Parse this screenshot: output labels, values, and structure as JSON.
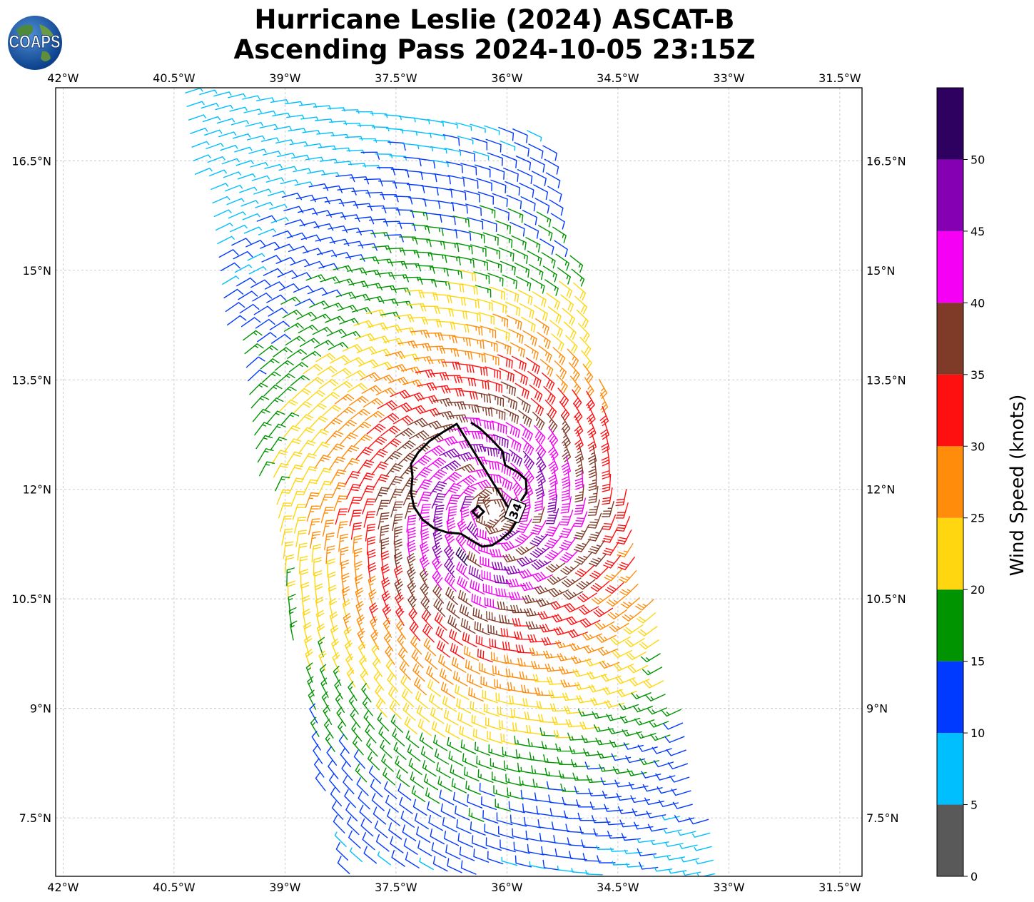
{
  "title": {
    "line1": "Hurricane Leslie (2024) ASCAT-B",
    "line2": "Ascending Pass 2024-10-05 23:15Z"
  },
  "logo": {
    "text": "COAPS",
    "icon": "globe-icon"
  },
  "map": {
    "lon_range": [
      -42.1,
      -31.2
    ],
    "lat_range": [
      6.7,
      17.5
    ],
    "lon_ticks": [
      "42°W",
      "40.5°W",
      "39°W",
      "37.5°W",
      "36°W",
      "34.5°W",
      "33°W",
      "31.5°W"
    ],
    "lon_tick_values": [
      -42,
      -40.5,
      -39,
      -37.5,
      -36,
      -34.5,
      -33,
      -31.5
    ],
    "lat_ticks": [
      "16.5°N",
      "15°N",
      "13.5°N",
      "12°N",
      "10.5°N",
      "9°N",
      "7.5°N"
    ],
    "lat_tick_values": [
      16.5,
      15,
      13.5,
      12,
      10.5,
      9,
      7.5
    ],
    "gridlines": true,
    "center": {
      "lon": -36.2,
      "lat": 11.7
    },
    "contour_label": "34"
  },
  "colorbar": {
    "label": "Wind Speed (knots)",
    "ticks": [
      "0",
      "5",
      "10",
      "15",
      "20",
      "25",
      "30",
      "35",
      "40",
      "45",
      "50"
    ],
    "bins": [
      {
        "min": 0,
        "max": 5,
        "color": "#595959"
      },
      {
        "min": 5,
        "max": 10,
        "color": "#00bfff"
      },
      {
        "min": 10,
        "max": 15,
        "color": "#0039ff"
      },
      {
        "min": 15,
        "max": 20,
        "color": "#009400"
      },
      {
        "min": 20,
        "max": 25,
        "color": "#ffd60f"
      },
      {
        "min": 25,
        "max": 30,
        "color": "#ff8c0a"
      },
      {
        "min": 30,
        "max": 35,
        "color": "#ff1010"
      },
      {
        "min": 35,
        "max": 40,
        "color": "#7f3b28"
      },
      {
        "min": 40,
        "max": 45,
        "color": "#f500f5"
      },
      {
        "min": 45,
        "max": 50,
        "color": "#8600b3"
      },
      {
        "min": 50,
        "max": 55,
        "color": "#2e0060"
      }
    ]
  }
}
